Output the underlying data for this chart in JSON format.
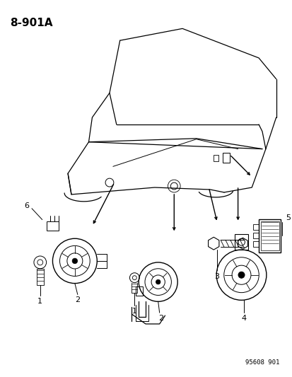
{
  "diagram_id": "8-901A",
  "part_number_label": "95608 901",
  "background_color": "#ffffff",
  "line_color": "#000000",
  "text_color": "#000000",
  "figsize": [
    4.14,
    5.33
  ],
  "dpi": 100
}
